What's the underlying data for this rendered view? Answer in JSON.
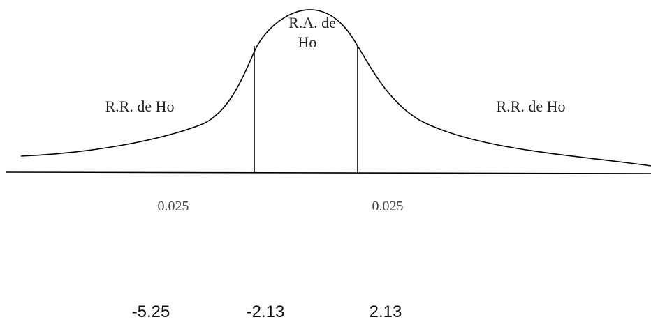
{
  "diagram": {
    "acceptance_region_label_line1": "R.A. de",
    "acceptance_region_label_line2": "Ho",
    "left_rejection_label": "R.R. de Ho",
    "right_rejection_label": "R.R. de Ho",
    "left_tail_area": "0.025",
    "right_tail_area": "0.025",
    "values": {
      "test_statistic": "-5.25",
      "lower_critical": "-2.13",
      "upper_critical": "2.13"
    },
    "colors": {
      "curve": "#000000",
      "axis": "#000000",
      "text": "#111111"
    }
  }
}
